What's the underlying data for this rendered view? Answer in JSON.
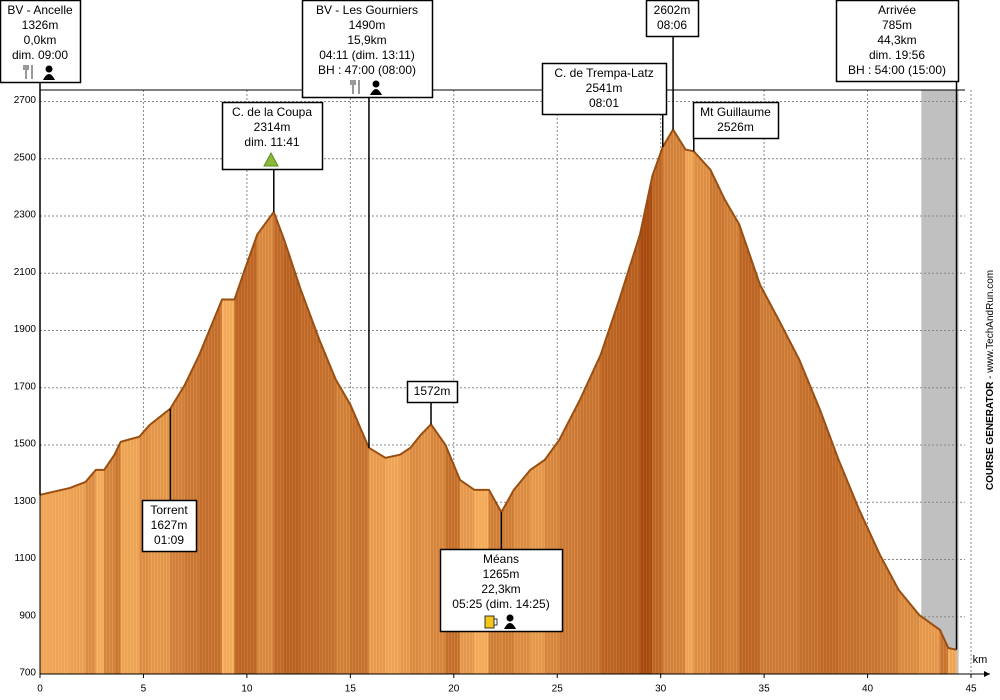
{
  "chart_data": {
    "type": "area",
    "x_label": "km",
    "x": [
      0,
      1.45,
      2.2,
      2.7,
      3.1,
      3.6,
      3.9,
      4.8,
      5.3,
      6.3,
      7.0,
      7.7,
      8.8,
      9.4,
      9.9,
      10.5,
      11.3,
      11.8,
      12.6,
      13.5,
      14.3,
      15.0,
      15.9,
      16.7,
      17.4,
      17.9,
      18.4,
      18.9,
      19.6,
      20.3,
      21.0,
      21.7,
      22.3,
      22.9,
      23.7,
      24.4,
      25.1,
      26.1,
      27.1,
      28.0,
      29.0,
      29.6,
      30.1,
      30.6,
      31.2,
      31.6,
      32.4,
      33.1,
      33.8,
      34.8,
      35.7,
      36.7,
      37.7,
      38.6,
      39.6,
      40.6,
      41.5,
      42.5,
      43.5,
      43.9,
      44.3
    ],
    "values": [
      1326,
      1350,
      1371,
      1413,
      1413,
      1466,
      1511,
      1529,
      1570,
      1627,
      1710,
      1815,
      2008,
      2008,
      2113,
      2235,
      2314,
      2217,
      2043,
      1868,
      1728,
      1641,
      1490,
      1455,
      1466,
      1490,
      1535,
      1572,
      1500,
      1378,
      1343,
      1343,
      1265,
      1343,
      1413,
      1448,
      1518,
      1658,
      1815,
      2008,
      2235,
      2440,
      2541,
      2602,
      2532,
      2526,
      2462,
      2357,
      2270,
      2060,
      1938,
      1798,
      1623,
      1448,
      1273,
      1116,
      994,
      906,
      854,
      791,
      785
    ],
    "xlim": [
      0,
      45
    ],
    "ylim": [
      700,
      2740
    ],
    "xticks": [
      0,
      5,
      10,
      15,
      20,
      25,
      30,
      35,
      40,
      45
    ],
    "yticks": [
      700,
      900,
      1100,
      1300,
      1500,
      1700,
      1900,
      2100,
      2300,
      2500,
      2700
    ],
    "grid": true,
    "shaded_xrange": [
      42.6,
      44.4
    ],
    "annotations": [
      {
        "x": 0,
        "y": 1326,
        "lines": [
          "BV - Ancelle",
          "1326m",
          "0,0km",
          "dim. 09:00"
        ]
      },
      {
        "x": 11.3,
        "y": 2314,
        "lines": [
          "C. de la Coupa",
          "2314m",
          "dim. 11:41"
        ]
      },
      {
        "x": 15.9,
        "y": 1490,
        "lines": [
          "BV - Les Gourniers",
          "1490m",
          "15,9km",
          "04:11 (dim. 13:11)",
          "BH : 47:00 (08:00)"
        ]
      },
      {
        "x": 18.9,
        "y": 1572,
        "lines": [
          "1572m"
        ]
      },
      {
        "x": 6.3,
        "y": 1627,
        "lines": [
          "Torrent",
          "1627m",
          "01:09"
        ]
      },
      {
        "x": 22.3,
        "y": 1265,
        "lines": [
          "Méans",
          "1265m",
          "22,3km",
          "05:25 (dim. 14:25)"
        ]
      },
      {
        "x": 30.1,
        "y": 2541,
        "lines": [
          "C. de Trempa-Latz",
          "2541m",
          "08:01"
        ]
      },
      {
        "x": 30.6,
        "y": 2602,
        "lines": [
          "2602m",
          "08:06"
        ]
      },
      {
        "x": 31.6,
        "y": 2526,
        "lines": [
          "Mt Guillaume",
          "2526m"
        ]
      },
      {
        "x": 44.3,
        "y": 785,
        "lines": [
          "Arrivée",
          "785m",
          "44,3km",
          "dim. 19:56",
          "BH : 54:00 (15:00)"
        ]
      }
    ],
    "credit": {
      "bold": "COURSE GENERATOR",
      "text": " - www.TechAndRun.com"
    }
  }
}
